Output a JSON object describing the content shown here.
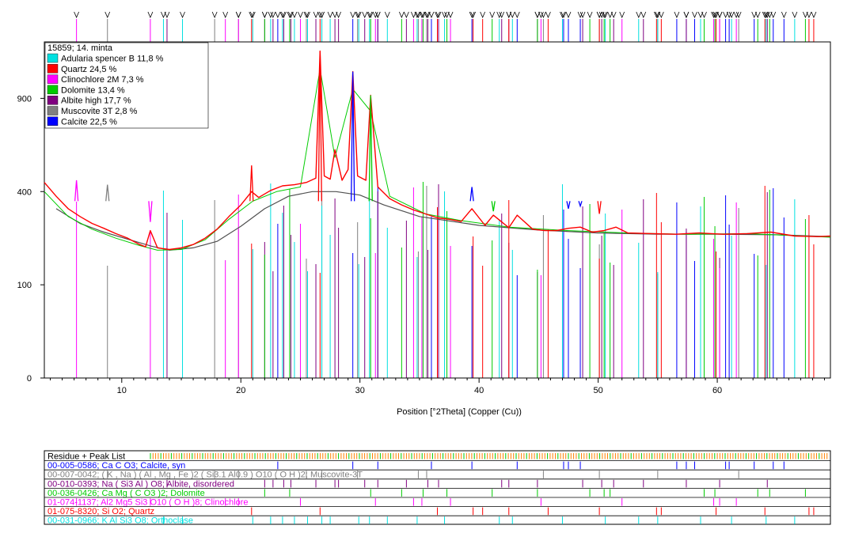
{
  "chart_data": {
    "type": "line",
    "sample_label": "15859; 14. minta",
    "xlabel": "Position [°2Theta] (Copper (Cu))",
    "xlim": [
      3.5,
      69.5
    ],
    "x_ticks": [
      10,
      20,
      30,
      40,
      50,
      60
    ],
    "y_ticks": [
      {
        "value": 0,
        "label": "0"
      },
      {
        "value": 100,
        "label": "100"
      },
      {
        "value": 400,
        "label": "400"
      },
      {
        "value": 900,
        "label": "900"
      }
    ],
    "y_scale": "sqrt",
    "ylim": [
      0,
      1300
    ],
    "legend_position": "top-left",
    "phases": [
      {
        "name": "Adularia spencer B 11,8 %",
        "color": "#00e0e0"
      },
      {
        "name": "Quartz 24,5 %",
        "color": "#ff0000"
      },
      {
        "name": "Clinochlore 2M 7,3 %",
        "color": "#ff00ff"
      },
      {
        "name": "Dolomite 13,4 %",
        "color": "#00cc00"
      },
      {
        "name": "Albite high 17,7 %",
        "color": "#800080"
      },
      {
        "name": "Muscovite 3T 2,8 %",
        "color": "#808080"
      },
      {
        "name": "Calcite 22,5 %",
        "color": "#0000ff"
      }
    ],
    "measured_pattern": {
      "color": "#ff0000",
      "x": [
        3.5,
        4.5,
        5.5,
        6.5,
        7.5,
        8.5,
        9.5,
        10.5,
        11.5,
        12.0,
        12.4,
        13.0,
        14.0,
        15.0,
        16.0,
        17.0,
        18.0,
        19.0,
        20.0,
        20.9,
        21.5,
        22.5,
        23.5,
        24.5,
        25.5,
        26.3,
        26.65,
        27.0,
        27.5,
        27.9,
        28.5,
        29.0,
        29.4,
        29.8,
        30.5,
        30.9,
        31.5,
        32.5,
        33.5,
        34.5,
        35.5,
        36.5,
        37.5,
        38.5,
        39.4,
        40.5,
        41.2,
        42.5,
        43.2,
        44.5,
        45.5,
        46.5,
        47.5,
        48.5,
        49.5,
        50.5,
        51.5,
        52.5,
        54.5,
        56.5,
        58.5,
        60.5,
        62.5,
        64.5,
        66.5,
        68.5,
        69.5
      ],
      "y": [
        440,
        380,
        330,
        300,
        275,
        258,
        240,
        225,
        205,
        198,
        250,
        195,
        190,
        195,
        205,
        225,
        255,
        300,
        345,
        400,
        375,
        405,
        425,
        430,
        440,
        460,
        1230,
        470,
        455,
        600,
        450,
        500,
        1080,
        470,
        450,
        920,
        420,
        370,
        345,
        325,
        310,
        295,
        290,
        282,
        330,
        268,
        305,
        260,
        305,
        255,
        250,
        250,
        258,
        262,
        245,
        250,
        262,
        242,
        240,
        238,
        242,
        238,
        240,
        245,
        232,
        230,
        232
      ]
    },
    "calculated_profile": {
      "color": "#00cc00",
      "x": [
        3.5,
        5.5,
        7.5,
        9.5,
        11.5,
        13.0,
        15.0,
        17.0,
        19.0,
        21.0,
        23.0,
        25.0,
        26.65,
        27.9,
        29.4,
        30.9,
        32.5,
        35.5,
        38.5,
        42.5,
        47.5,
        52.5,
        57.5,
        62.5,
        69.5
      ],
      "y": [
        400,
        300,
        255,
        225,
        202,
        188,
        190,
        220,
        290,
        360,
        400,
        420,
        1100,
        560,
        960,
        820,
        380,
        310,
        285,
        262,
        250,
        242,
        238,
        240,
        228
      ]
    },
    "background": {
      "color": "#505050",
      "x": [
        4.5,
        6.5,
        8.5,
        10.5,
        12.5,
        14.0,
        16.0,
        18.0,
        20.0,
        22.0,
        24.0,
        26.0,
        28.0,
        30.0,
        32.0,
        35.0,
        40.0,
        45.0,
        50.0,
        55.0,
        60.0,
        65.0,
        69.5
      ],
      "y": [
        330,
        275,
        245,
        222,
        200,
        188,
        195,
        215,
        265,
        330,
        380,
        400,
        400,
        385,
        345,
        300,
        268,
        252,
        242,
        238,
        238,
        236,
        230
      ]
    },
    "major_peaks": [
      {
        "phase": "Quartz 24,5 %",
        "x": 26.65,
        "y": 1230
      },
      {
        "phase": "Calcite 22,5 %",
        "x": 29.4,
        "y": 1080
      },
      {
        "phase": "Dolomite 13,4 %",
        "x": 30.9,
        "y": 920
      },
      {
        "phase": "Quartz 24,5 %",
        "x": 20.9,
        "y": 520
      },
      {
        "phase": "Clinochlore 2M 7,3 %",
        "x": 6.2,
        "y": 450
      },
      {
        "phase": "Muscovite 3T 2,8 %",
        "x": 8.8,
        "y": 430
      },
      {
        "phase": "Clinochlore 2M 7,3 %",
        "x": 12.4,
        "y": 280
      },
      {
        "phase": "Calcite 22,5 %",
        "x": 39.4,
        "y": 420
      },
      {
        "phase": "Calcite 22,5 %",
        "x": 47.5,
        "y": 330
      },
      {
        "phase": "Calcite 22,5 %",
        "x": 48.5,
        "y": 340
      },
      {
        "phase": "Quartz 24,5 %",
        "x": 50.1,
        "y": 310
      },
      {
        "phase": "Dolomite 13,4 %",
        "x": 41.2,
        "y": 320
      }
    ],
    "peak_lists": [
      {
        "label": "Residue + Peak List",
        "color": "#000000"
      },
      {
        "label": "00-005-0586; Ca C O3; Calcite, syn",
        "color": "#0000ff",
        "positions": [
          23.1,
          29.4,
          31.5,
          36.0,
          39.4,
          43.2,
          47.1,
          47.5,
          48.5,
          56.6,
          57.4,
          58.1,
          60.7,
          61.0,
          63.1,
          64.7,
          65.6
        ]
      },
      {
        "label": "00-007-0042; ( K , Na ) ( Al , Mg , Fe )2 ( Si3.1 Al0.9 ) O10 ( O H )2; Muscovite-3T",
        "color": "#808080",
        "positions": [
          8.8,
          17.8,
          19.8,
          25.5,
          26.8,
          29.8,
          34.9,
          35.6,
          45.4,
          50.1,
          55.0,
          61.8
        ]
      },
      {
        "label": "00-010-0393; Na ( Si3 Al ) O8; Albite, disordered",
        "color": "#800080",
        "positions": [
          13.8,
          22.0,
          22.7,
          23.6,
          24.2,
          26.3,
          27.9,
          28.2,
          30.4,
          31.5,
          33.9,
          35.7,
          36.6,
          41.9,
          42.5,
          44.9,
          48.7,
          50.3,
          51.3,
          53.8,
          57.4,
          60.2,
          64.2
        ]
      },
      {
        "label": "00-036-0426; Ca Mg ( C O3 )2; Dolomite",
        "color": "#00cc00",
        "positions": [
          22.0,
          24.1,
          30.9,
          33.5,
          35.3,
          37.3,
          41.1,
          44.9,
          49.3,
          50.5,
          51.0,
          58.9,
          59.8,
          63.4,
          64.4,
          67.4
        ]
      },
      {
        "label": "01-074-1137; Al2 Mg5 Si3 O10 ( O H )8; Clinochlore",
        "color": "#ff00ff",
        "positions": [
          6.2,
          12.4,
          18.7,
          19.8,
          25.0,
          31.3,
          34.5,
          35.2,
          37.6,
          45.2,
          52.0,
          59.7,
          60.2,
          61.6
        ]
      },
      {
        "label": "01-075-8320; Si O2; Quartz",
        "color": "#ff0000",
        "positions": [
          20.9,
          26.65,
          36.5,
          39.5,
          40.3,
          42.5,
          45.8,
          50.1,
          54.9,
          55.3,
          59.9,
          64.0,
          67.7,
          68.1
        ]
      },
      {
        "label": "00-031-0966; K Al Si3 O8; Orthoclase",
        "color": "#00e0e0",
        "positions": [
          13.5,
          15.1,
          21.0,
          22.5,
          23.5,
          24.5,
          25.6,
          26.8,
          27.5,
          29.9,
          30.8,
          32.3,
          34.8,
          37.1,
          41.7,
          42.8,
          47.0,
          50.6,
          53.4,
          55.0,
          58.6,
          61.2,
          64.1,
          66.5
        ]
      }
    ]
  }
}
